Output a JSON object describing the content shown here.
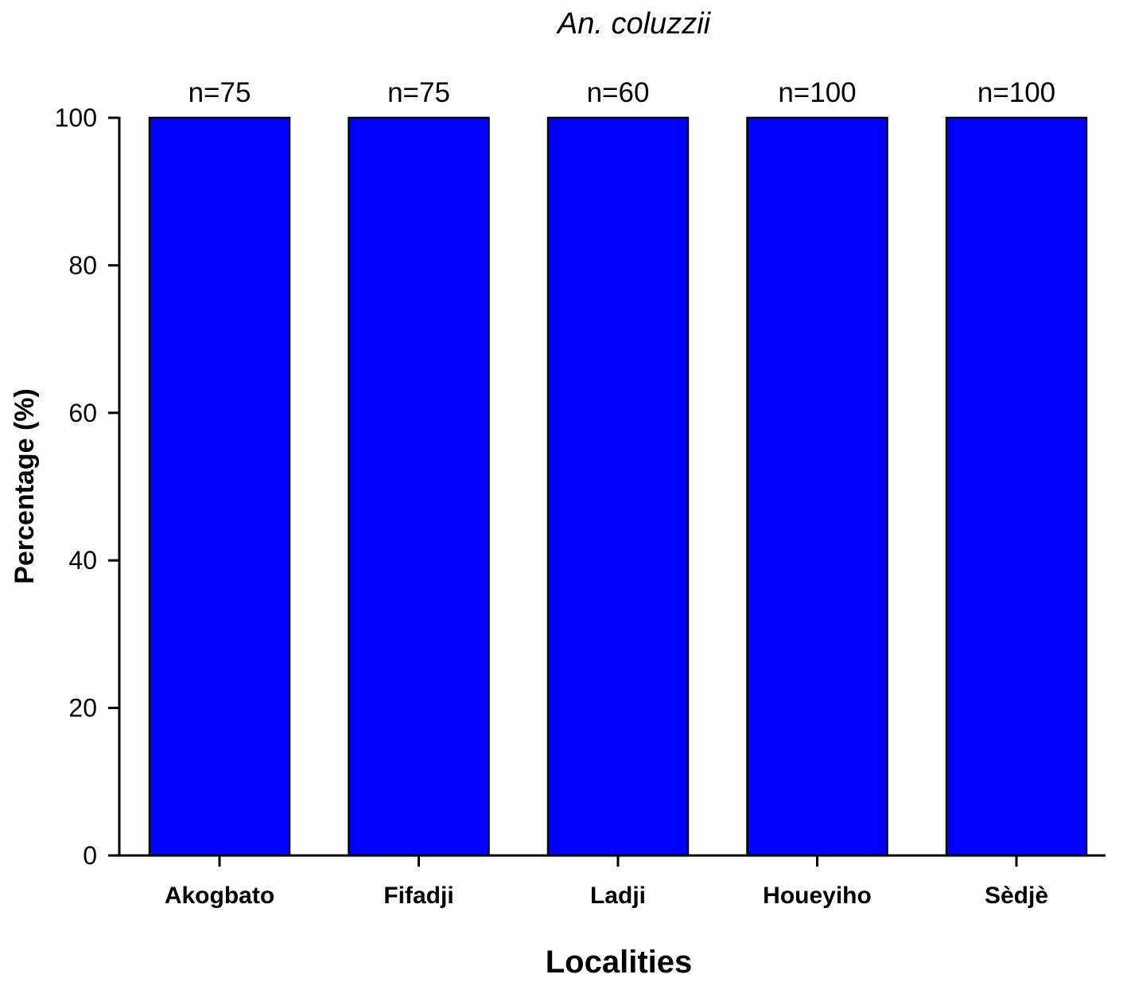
{
  "chart_data": {
    "type": "bar",
    "title": "An. coluzzii",
    "xlabel": "Localities",
    "ylabel": "Percentage (%)",
    "categories": [
      "Akogbato",
      "Fifadji",
      "Ladji",
      "Houeyiho",
      "Sèdjè"
    ],
    "values": [
      100,
      100,
      100,
      100,
      100
    ],
    "annotations": [
      "n=75",
      "n=75",
      "n=60",
      "n=100",
      "n=100"
    ],
    "ylim": [
      0,
      100
    ],
    "yticks": [
      0,
      20,
      40,
      60,
      80,
      100
    ],
    "ytick_labels": [
      "0",
      "20",
      "40",
      "60",
      "80",
      "100"
    ],
    "grid": false,
    "colors": {
      "bar_fill": "#0000ff",
      "bar_stroke": "#000000",
      "axis": "#000000"
    }
  }
}
